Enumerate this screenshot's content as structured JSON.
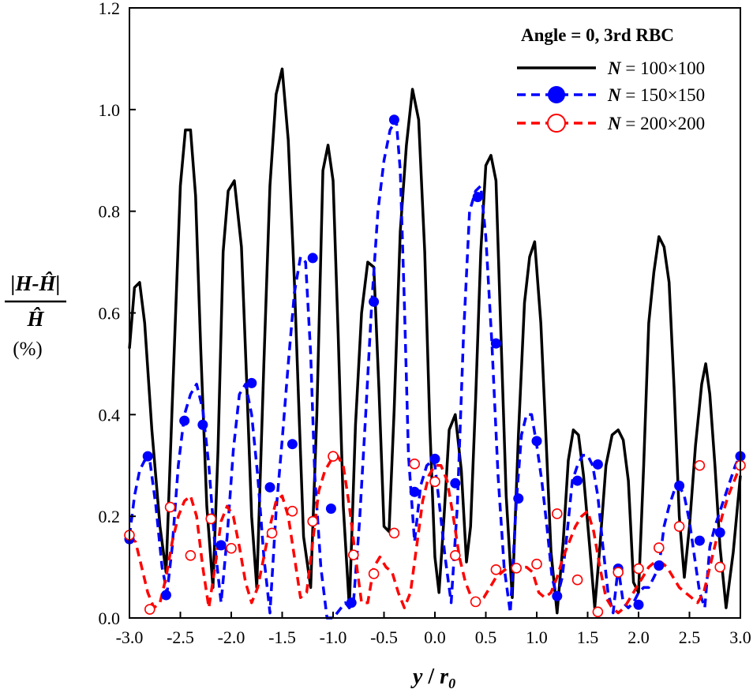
{
  "chart_data": {
    "type": "line",
    "title": "",
    "xlabel": "y / r0",
    "xlabel_main": "y",
    "xlabel_sep": " / ",
    "xlabel_r": "r",
    "xlabel_sub": "0",
    "ylabel_numerator": "|H-Ĥ|",
    "ylabel_denominator": "Ĥ",
    "ylabel_unit": "(%)",
    "xlim": [
      -3.0,
      3.0
    ],
    "ylim": [
      0.0,
      1.2
    ],
    "xticks": [
      -3.0,
      -2.5,
      -2.0,
      -1.5,
      -1.0,
      -0.5,
      0.0,
      0.5,
      1.0,
      1.5,
      2.0,
      2.5,
      3.0
    ],
    "xtick_labels": [
      "-3.0",
      "-2.5",
      "-2.0",
      "-1.5",
      "-1.0",
      "-0.5",
      "0.0",
      "0.5",
      "1.0",
      "1.5",
      "2.0",
      "2.5",
      "3.0"
    ],
    "yticks": [
      0.0,
      0.2,
      0.4,
      0.6,
      0.8,
      1.0,
      1.2
    ],
    "ytick_labels": [
      "0.0",
      "0.2",
      "0.4",
      "0.6",
      "0.8",
      "1.0",
      "1.2"
    ],
    "grid": false,
    "legend": {
      "position": "top-right",
      "title": "Angle = 0, 3rd RBC",
      "entries": [
        {
          "n_label": "N",
          "eq": " = ",
          "value": "100×100"
        },
        {
          "n_label": "N",
          "eq": " = ",
          "value": "150×150"
        },
        {
          "n_label": "N",
          "eq": " = ",
          "value": "200×200"
        }
      ]
    },
    "series": [
      {
        "name": "N = 100×100",
        "color": "#000000",
        "style": "solid",
        "marker": "none",
        "x": [
          -3.0,
          -2.95,
          -2.9,
          -2.85,
          -2.78,
          -2.7,
          -2.64,
          -2.58,
          -2.5,
          -2.45,
          -2.4,
          -2.35,
          -2.3,
          -2.24,
          -2.18,
          -2.13,
          -2.08,
          -2.03,
          -1.97,
          -1.9,
          -1.85,
          -1.8,
          -1.75,
          -1.68,
          -1.62,
          -1.56,
          -1.5,
          -1.44,
          -1.38,
          -1.33,
          -1.29,
          -1.22,
          -1.16,
          -1.1,
          -1.05,
          -1.0,
          -0.95,
          -0.9,
          -0.84,
          -0.78,
          -0.72,
          -0.66,
          -0.6,
          -0.55,
          -0.5,
          -0.45,
          -0.4,
          -0.34,
          -0.28,
          -0.22,
          -0.16,
          -0.1,
          -0.05,
          0.0,
          0.04,
          0.09,
          0.14,
          0.2,
          0.26,
          0.31,
          0.35,
          0.4,
          0.45,
          0.5,
          0.55,
          0.6,
          0.65,
          0.7,
          0.76,
          0.82,
          0.88,
          0.93,
          0.98,
          1.04,
          1.09,
          1.14,
          1.2,
          1.26,
          1.31,
          1.36,
          1.41,
          1.46,
          1.52,
          1.57,
          1.62,
          1.68,
          1.74,
          1.8,
          1.85,
          1.9,
          1.95,
          2.0,
          2.05,
          2.1,
          2.15,
          2.2,
          2.25,
          2.3,
          2.35,
          2.4,
          2.45,
          2.5,
          2.56,
          2.62,
          2.66,
          2.7,
          2.75,
          2.8,
          2.86,
          2.93,
          3.0
        ],
        "y": [
          0.53,
          0.65,
          0.66,
          0.58,
          0.37,
          0.18,
          0.09,
          0.42,
          0.85,
          0.96,
          0.96,
          0.83,
          0.53,
          0.22,
          0.06,
          0.33,
          0.72,
          0.84,
          0.86,
          0.73,
          0.47,
          0.2,
          0.06,
          0.5,
          0.85,
          1.03,
          1.08,
          0.94,
          0.66,
          0.38,
          0.16,
          0.06,
          0.4,
          0.88,
          0.93,
          0.86,
          0.56,
          0.22,
          0.02,
          0.38,
          0.6,
          0.7,
          0.69,
          0.45,
          0.18,
          0.17,
          0.41,
          0.76,
          0.93,
          1.04,
          0.98,
          0.72,
          0.38,
          0.12,
          0.05,
          0.2,
          0.37,
          0.4,
          0.29,
          0.11,
          0.18,
          0.43,
          0.72,
          0.89,
          0.91,
          0.86,
          0.55,
          0.24,
          0.04,
          0.36,
          0.62,
          0.71,
          0.74,
          0.58,
          0.36,
          0.13,
          0.01,
          0.15,
          0.31,
          0.37,
          0.36,
          0.28,
          0.14,
          0.02,
          0.14,
          0.3,
          0.36,
          0.37,
          0.35,
          0.27,
          0.07,
          0.05,
          0.3,
          0.58,
          0.68,
          0.75,
          0.73,
          0.66,
          0.45,
          0.2,
          0.08,
          0.18,
          0.34,
          0.46,
          0.5,
          0.44,
          0.3,
          0.14,
          0.02,
          0.13,
          0.28
        ]
      },
      {
        "name": "N = 150×150",
        "color": "#0000ff",
        "style": "dashed",
        "marker": "filled-circle",
        "x": [
          -3.0,
          -2.95,
          -2.9,
          -2.85,
          -2.8,
          -2.74,
          -2.68,
          -2.63,
          -2.58,
          -2.52,
          -2.46,
          -2.4,
          -2.34,
          -2.28,
          -2.22,
          -2.16,
          -2.1,
          -2.04,
          -1.98,
          -1.92,
          -1.86,
          -1.8,
          -1.74,
          -1.68,
          -1.62,
          -1.56,
          -1.5,
          -1.44,
          -1.38,
          -1.32,
          -1.27,
          -1.22,
          -1.18,
          -1.12,
          -1.06,
          -1.0,
          -0.96,
          -0.92,
          -0.88,
          -0.84,
          -0.8,
          -0.74,
          -0.68,
          -0.62,
          -0.56,
          -0.5,
          -0.44,
          -0.38,
          -0.34,
          -0.3,
          -0.26,
          -0.2,
          -0.14,
          -0.08,
          -0.02,
          0.0,
          0.04,
          0.1,
          0.16,
          0.22,
          0.28,
          0.34,
          0.4,
          0.45,
          0.5,
          0.56,
          0.62,
          0.68,
          0.74,
          0.8,
          0.85,
          0.9,
          0.95,
          1.0,
          1.05,
          1.1,
          1.15,
          1.2,
          1.25,
          1.3,
          1.35,
          1.4,
          1.45,
          1.5,
          1.55,
          1.6,
          1.65,
          1.7,
          1.75,
          1.8,
          1.85,
          1.9,
          1.95,
          2.0,
          2.05,
          2.1,
          2.15,
          2.2,
          2.25,
          2.3,
          2.35,
          2.4,
          2.45,
          2.5,
          2.55,
          2.6,
          2.65,
          2.7,
          2.75,
          2.8,
          2.85,
          2.9,
          2.95,
          3.0
        ],
        "y": [
          0.16,
          0.24,
          0.29,
          0.31,
          0.31,
          0.22,
          0.1,
          0.05,
          0.14,
          0.3,
          0.4,
          0.44,
          0.46,
          0.41,
          0.3,
          0.14,
          0.03,
          0.16,
          0.33,
          0.44,
          0.46,
          0.4,
          0.28,
          0.12,
          0.01,
          0.21,
          0.35,
          0.5,
          0.64,
          0.71,
          0.7,
          0.52,
          0.28,
          0.1,
          0.0,
          0.0,
          0.01,
          0.02,
          0.03,
          0.02,
          0.03,
          0.19,
          0.4,
          0.62,
          0.8,
          0.9,
          0.96,
          0.98,
          0.88,
          0.62,
          0.32,
          0.15,
          0.26,
          0.3,
          0.31,
          0.3,
          0.23,
          0.12,
          0.03,
          0.22,
          0.55,
          0.8,
          0.84,
          0.85,
          0.75,
          0.54,
          0.28,
          0.1,
          0.01,
          0.23,
          0.36,
          0.4,
          0.4,
          0.34,
          0.27,
          0.18,
          0.08,
          0.04,
          0.08,
          0.17,
          0.27,
          0.3,
          0.32,
          0.32,
          0.3,
          0.24,
          0.14,
          0.05,
          0.01,
          0.1,
          0.03,
          0.02,
          0.03,
          0.05,
          0.06,
          0.06,
          0.08,
          0.1,
          0.18,
          0.22,
          0.25,
          0.26,
          0.24,
          0.19,
          0.12,
          0.05,
          0.02,
          0.14,
          0.18,
          0.21,
          0.24,
          0.27,
          0.3,
          0.32
        ]
      },
      {
        "name": "N = 200×200",
        "color": "#ff0000",
        "style": "dashed",
        "marker": "open-circle",
        "x": [
          -3.0,
          -2.94,
          -2.88,
          -2.82,
          -2.76,
          -2.7,
          -2.64,
          -2.58,
          -2.52,
          -2.46,
          -2.4,
          -2.34,
          -2.28,
          -2.22,
          -2.16,
          -2.1,
          -2.04,
          -1.98,
          -1.92,
          -1.86,
          -1.8,
          -1.74,
          -1.68,
          -1.62,
          -1.56,
          -1.5,
          -1.44,
          -1.38,
          -1.32,
          -1.26,
          -1.2,
          -1.14,
          -1.08,
          -1.02,
          -0.96,
          -0.9,
          -0.84,
          -0.78,
          -0.72,
          -0.66,
          -0.6,
          -0.54,
          -0.48,
          -0.42,
          -0.36,
          -0.3,
          -0.24,
          -0.18,
          -0.12,
          -0.06,
          0.0,
          0.06,
          0.12,
          0.18,
          0.24,
          0.3,
          0.36,
          0.42,
          0.48,
          0.54,
          0.6,
          0.66,
          0.72,
          0.78,
          0.84,
          0.9,
          0.96,
          1.02,
          1.08,
          1.14,
          1.2,
          1.26,
          1.32,
          1.38,
          1.44,
          1.5,
          1.56,
          1.62,
          1.68,
          1.74,
          1.8,
          1.86,
          1.92,
          1.98,
          2.04,
          2.1,
          2.16,
          2.22,
          2.28,
          2.34,
          2.4,
          2.46,
          2.52,
          2.58,
          2.64,
          2.7,
          2.76,
          2.82,
          2.88,
          2.94,
          3.0
        ],
        "y": [
          0.16,
          0.15,
          0.1,
          0.05,
          0.02,
          0.03,
          0.08,
          0.15,
          0.2,
          0.23,
          0.24,
          0.2,
          0.1,
          0.02,
          0.1,
          0.19,
          0.22,
          0.2,
          0.14,
          0.07,
          0.03,
          0.06,
          0.12,
          0.18,
          0.23,
          0.24,
          0.2,
          0.12,
          0.04,
          0.05,
          0.15,
          0.25,
          0.29,
          0.31,
          0.32,
          0.3,
          0.22,
          0.12,
          0.03,
          0.03,
          0.1,
          0.12,
          0.1,
          0.09,
          0.05,
          0.02,
          0.05,
          0.14,
          0.23,
          0.28,
          0.3,
          0.3,
          0.27,
          0.2,
          0.12,
          0.07,
          0.04,
          0.03,
          0.04,
          0.06,
          0.08,
          0.09,
          0.1,
          0.1,
          0.1,
          0.1,
          0.09,
          0.05,
          0.04,
          0.05,
          0.08,
          0.12,
          0.15,
          0.18,
          0.2,
          0.21,
          0.17,
          0.1,
          0.04,
          0.02,
          0.01,
          0.02,
          0.04,
          0.06,
          0.08,
          0.1,
          0.11,
          0.11,
          0.1,
          0.08,
          0.06,
          0.05,
          0.04,
          0.03,
          0.05,
          0.1,
          0.15,
          0.2,
          0.24,
          0.27,
          0.3
        ]
      }
    ],
    "markers": [
      {
        "series": 1,
        "x": [
          -3.0,
          -2.82,
          -2.64,
          -2.46,
          -2.28,
          -2.1,
          -1.8,
          -1.62,
          -1.4,
          -1.2,
          -1.02,
          -0.82,
          -0.6,
          -0.4,
          -0.2,
          0.0,
          0.2,
          0.42,
          0.6,
          0.82,
          1.0,
          1.2,
          1.4,
          1.6,
          1.8,
          2.0,
          2.2,
          2.4,
          2.6,
          2.8,
          3.0
        ],
        "y": [
          0.155,
          0.318,
          0.045,
          0.388,
          0.38,
          0.143,
          0.462,
          0.257,
          0.342,
          0.708,
          0.215,
          0.03,
          0.622,
          0.98,
          0.248,
          0.313,
          0.265,
          0.828,
          0.54,
          0.235,
          0.348,
          0.043,
          0.27,
          0.302,
          0.097,
          0.026,
          0.103,
          0.26,
          0.152,
          0.168,
          0.318
        ]
      },
      {
        "series": 2,
        "x": [
          -3.0,
          -2.8,
          -2.6,
          -2.4,
          -2.2,
          -2.0,
          -1.6,
          -1.4,
          -1.2,
          -1.0,
          -0.8,
          -0.6,
          -0.4,
          -0.2,
          0.0,
          0.2,
          0.4,
          0.6,
          0.8,
          1.0,
          1.2,
          1.4,
          1.6,
          1.8,
          2.0,
          2.2,
          2.4,
          2.6,
          2.8,
          3.0
        ],
        "y": [
          0.163,
          0.017,
          0.218,
          0.123,
          0.195,
          0.137,
          0.167,
          0.21,
          0.19,
          0.318,
          0.124,
          0.087,
          0.167,
          0.303,
          0.268,
          0.123,
          0.032,
          0.095,
          0.098,
          0.106,
          0.205,
          0.075,
          0.012,
          0.09,
          0.097,
          0.138,
          0.18,
          0.3,
          0.1,
          0.3
        ]
      }
    ]
  }
}
